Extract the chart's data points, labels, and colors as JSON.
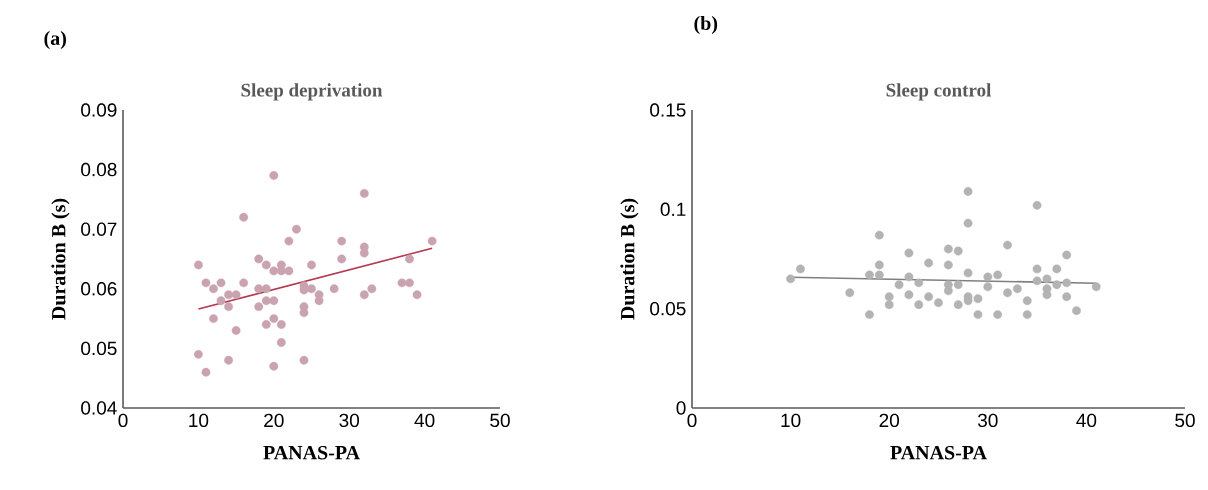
{
  "chart_data": [
    {
      "type": "scatter",
      "title": "Sleep deprivation",
      "xlabel": "PANAS-PA",
      "ylabel": "Duration B (s)",
      "annotations": [
        "(a)"
      ],
      "xlim": [
        0,
        50
      ],
      "ylim": [
        0.04,
        0.09
      ],
      "xticks": [
        0,
        10,
        20,
        30,
        40,
        50
      ],
      "yticks": [
        0.04,
        0.05,
        0.06,
        0.07,
        0.08,
        0.09
      ],
      "series": [
        {
          "type": "scatter",
          "marker": "circle",
          "color": "#c9a3b0",
          "x": [
            20,
            32,
            16,
            23,
            22,
            41,
            29,
            32,
            32,
            38,
            29,
            18,
            19,
            21,
            10,
            20,
            22,
            25,
            21,
            16,
            11,
            13,
            18,
            12,
            24,
            25,
            24,
            28,
            26,
            19,
            37,
            38,
            33,
            32,
            39,
            15,
            14,
            13,
            14,
            19,
            20,
            18,
            24,
            26,
            24,
            12,
            20,
            15,
            19,
            21,
            21,
            10,
            14,
            24,
            20,
            11
          ],
          "values": [
            0.079,
            0.076,
            0.072,
            0.07,
            0.068,
            0.068,
            0.068,
            0.067,
            0.066,
            0.065,
            0.065,
            0.065,
            0.064,
            0.064,
            0.064,
            0.063,
            0.063,
            0.064,
            0.063,
            0.061,
            0.061,
            0.061,
            0.06,
            0.06,
            0.0605,
            0.06,
            0.0598,
            0.06,
            0.059,
            0.06,
            0.061,
            0.061,
            0.06,
            0.059,
            0.059,
            0.059,
            0.059,
            0.058,
            0.057,
            0.058,
            0.058,
            0.057,
            0.057,
            0.058,
            0.056,
            0.055,
            0.055,
            0.053,
            0.054,
            0.054,
            0.051,
            0.049,
            0.048,
            0.048,
            0.047,
            0.046
          ]
        },
        {
          "type": "line",
          "marker": "none",
          "color": "#b5384f",
          "x": [
            10,
            41
          ],
          "values": [
            0.0566,
            0.0668
          ]
        }
      ]
    },
    {
      "type": "scatter",
      "title": "Sleep control",
      "xlabel": "PANAS-PA",
      "ylabel": "Duration B (s)",
      "annotations": [
        "(b)"
      ],
      "xlim": [
        0,
        50
      ],
      "ylim": [
        0,
        0.15
      ],
      "xticks": [
        0,
        10,
        20,
        30,
        40,
        50
      ],
      "yticks": [
        0,
        0.05,
        0.1,
        0.15
      ],
      "series": [
        {
          "type": "scatter",
          "marker": "circle",
          "color": "#b3b3b3",
          "x": [
            28,
            35,
            28,
            19,
            32,
            26,
            27,
            22,
            38,
            24,
            19,
            26,
            11,
            35,
            37,
            28,
            31,
            18,
            19,
            30,
            22,
            10,
            36,
            23,
            35,
            38,
            41,
            21,
            26,
            27,
            30,
            37,
            33,
            26,
            32,
            36,
            36,
            16,
            22,
            20,
            28,
            24,
            38,
            29,
            28,
            25,
            34,
            20,
            27,
            23,
            39,
            18,
            29,
            31,
            34
          ],
          "values": [
            0.109,
            0.102,
            0.093,
            0.087,
            0.082,
            0.08,
            0.079,
            0.078,
            0.077,
            0.073,
            0.072,
            0.072,
            0.07,
            0.07,
            0.07,
            0.068,
            0.067,
            0.067,
            0.067,
            0.066,
            0.066,
            0.065,
            0.065,
            0.063,
            0.064,
            0.063,
            0.061,
            0.062,
            0.062,
            0.062,
            0.061,
            0.062,
            0.06,
            0.059,
            0.058,
            0.06,
            0.057,
            0.058,
            0.057,
            0.056,
            0.056,
            0.056,
            0.056,
            0.055,
            0.054,
            0.053,
            0.054,
            0.052,
            0.052,
            0.052,
            0.049,
            0.047,
            0.047,
            0.047,
            0.047
          ]
        },
        {
          "type": "line",
          "marker": "none",
          "color": "#7f7f7f",
          "x": [
            10,
            41
          ],
          "values": [
            0.0658,
            0.0628
          ]
        }
      ]
    }
  ]
}
